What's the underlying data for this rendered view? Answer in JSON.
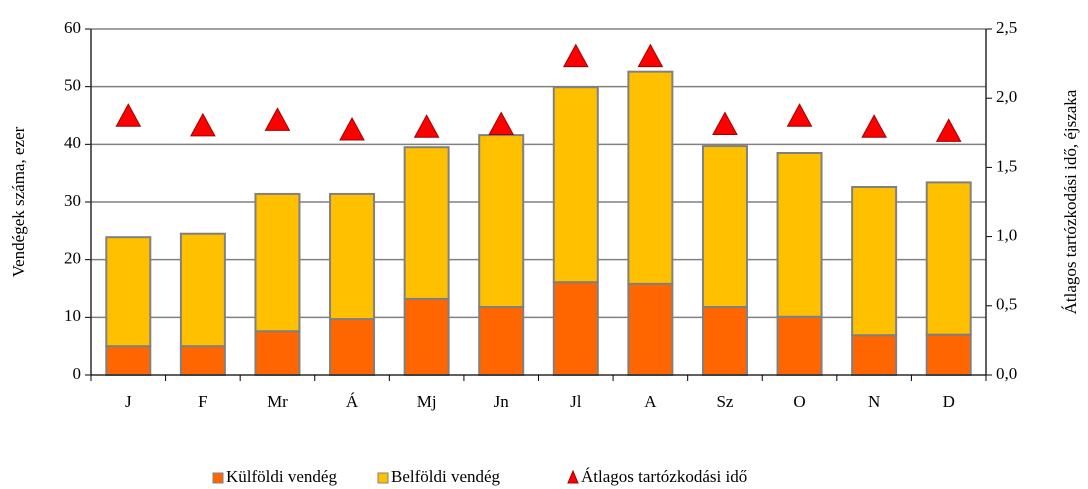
{
  "chart_data": {
    "type": "bar",
    "stacked": true,
    "categories": [
      "J",
      "F",
      "Mr",
      "Á",
      "Mj",
      "Jn",
      "Jl",
      "A",
      "Sz",
      "O",
      "N",
      "D"
    ],
    "series": [
      {
        "name": "Külföldi vendég",
        "type": "bar",
        "color": "#ff6600",
        "values": [
          5.0,
          5.0,
          7.6,
          9.7,
          13.2,
          11.8,
          16.1,
          15.8,
          11.8,
          10.1,
          6.9,
          7.0
        ]
      },
      {
        "name": "Belföldi vendég",
        "type": "bar",
        "color": "#ffc000",
        "values": [
          18.9,
          19.5,
          23.8,
          21.7,
          26.3,
          29.8,
          33.8,
          36.8,
          27.9,
          28.4,
          25.7,
          26.4
        ]
      },
      {
        "name": "Átlagos tartózkodási idő",
        "type": "scatter",
        "marker": "triangle",
        "axis": "y2",
        "color": "#ff0000",
        "values": [
          1.87,
          1.8,
          1.84,
          1.77,
          1.79,
          1.81,
          2.3,
          2.3,
          1.81,
          1.87,
          1.79,
          1.76
        ]
      }
    ],
    "ylabel": "Vendégek száma, ezer",
    "y2label": "Átlagos tartózkodási idő, éjszaka",
    "ylim": [
      0,
      60
    ],
    "yticks": [
      0,
      10,
      20,
      30,
      40,
      50,
      60
    ],
    "y2lim": [
      0,
      2.5
    ],
    "y2ticks": [
      {
        "value": 0,
        "label": "0,0"
      },
      {
        "value": 0.5,
        "label": "0,5"
      },
      {
        "value": 1,
        "label": "1,0"
      },
      {
        "value": 1.5,
        "label": "1,5"
      },
      {
        "value": 2,
        "label": "2,0"
      },
      {
        "value": 2.5,
        "label": "2,5"
      }
    ],
    "grid": true,
    "legend": "bottom"
  }
}
